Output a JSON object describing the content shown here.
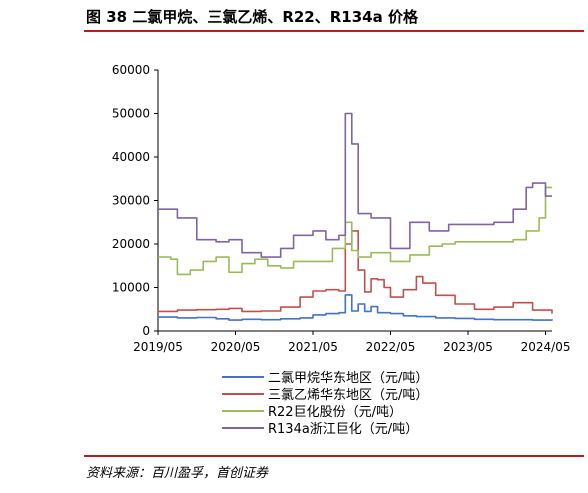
{
  "figure": {
    "title": "图 38 二氯甲烷、三氯乙烯、R22、R134a 价格",
    "source": "资料来源：百川盈孚，首创证券"
  },
  "chart_data": {
    "type": "line",
    "title": "",
    "xlabel": "",
    "ylabel": "",
    "ylim": [
      0,
      60000
    ],
    "yticks": [
      0,
      10000,
      20000,
      30000,
      40000,
      50000,
      60000
    ],
    "ytick_labels": [
      "0",
      "10000",
      "20000",
      "30000",
      "40000",
      "50000",
      "60000"
    ],
    "xlim": [
      "2019-05",
      "2024-06"
    ],
    "xticks": [
      "2019-05",
      "2020-05",
      "2021-05",
      "2022-05",
      "2023-05",
      "2024-05"
    ],
    "xtick_labels": [
      "2019/05",
      "2020/05",
      "2021/05",
      "2022/05",
      "2023/05",
      "2024/05"
    ],
    "grid": false,
    "legend_position": "bottom-center",
    "series": [
      {
        "name": "二氯甲烷华东地区（元/吨）",
        "color": "#4472c4",
        "points": [
          [
            "2019-05",
            3200
          ],
          [
            "2019-08",
            3000
          ],
          [
            "2019-11",
            3100
          ],
          [
            "2020-02",
            2800
          ],
          [
            "2020-04",
            2500
          ],
          [
            "2020-06",
            2700
          ],
          [
            "2020-09",
            2600
          ],
          [
            "2020-12",
            2800
          ],
          [
            "2021-03",
            3000
          ],
          [
            "2021-05",
            3700
          ],
          [
            "2021-07",
            4000
          ],
          [
            "2021-09",
            4200
          ],
          [
            "2021-10",
            8300
          ],
          [
            "2021-11",
            4600
          ],
          [
            "2021-12",
            6200
          ],
          [
            "2022-01",
            4500
          ],
          [
            "2022-02",
            5600
          ],
          [
            "2022-03",
            4200
          ],
          [
            "2022-05",
            4000
          ],
          [
            "2022-07",
            3500
          ],
          [
            "2022-09",
            3300
          ],
          [
            "2022-12",
            3000
          ],
          [
            "2023-03",
            2900
          ],
          [
            "2023-06",
            2700
          ],
          [
            "2023-09",
            2600
          ],
          [
            "2023-12",
            2600
          ],
          [
            "2024-03",
            2500
          ],
          [
            "2024-06",
            2700
          ]
        ]
      },
      {
        "name": "三氯乙烯华东地区（元/吨）",
        "color": "#c0504d",
        "points": [
          [
            "2019-05",
            4500
          ],
          [
            "2019-08",
            4800
          ],
          [
            "2019-11",
            4900
          ],
          [
            "2020-02",
            5000
          ],
          [
            "2020-04",
            5200
          ],
          [
            "2020-06",
            4500
          ],
          [
            "2020-09",
            4600
          ],
          [
            "2020-12",
            5500
          ],
          [
            "2021-03",
            7800
          ],
          [
            "2021-05",
            9200
          ],
          [
            "2021-07",
            9500
          ],
          [
            "2021-09",
            9200
          ],
          [
            "2021-10",
            20000
          ],
          [
            "2021-11",
            23000
          ],
          [
            "2021-12",
            14000
          ],
          [
            "2022-01",
            9000
          ],
          [
            "2022-02",
            12000
          ],
          [
            "2022-03",
            11800
          ],
          [
            "2022-04",
            10000
          ],
          [
            "2022-05",
            7800
          ],
          [
            "2022-07",
            9500
          ],
          [
            "2022-09",
            12500
          ],
          [
            "2022-10",
            11000
          ],
          [
            "2022-12",
            8200
          ],
          [
            "2023-03",
            6200
          ],
          [
            "2023-06",
            5000
          ],
          [
            "2023-09",
            5500
          ],
          [
            "2023-12",
            6500
          ],
          [
            "2024-03",
            4800
          ],
          [
            "2024-06",
            4000
          ]
        ]
      },
      {
        "name": "R22巨化股份（元/吨）",
        "color": "#9bbb59",
        "points": [
          [
            "2019-05",
            17000
          ],
          [
            "2019-07",
            16500
          ],
          [
            "2019-08",
            13000
          ],
          [
            "2019-10",
            14000
          ],
          [
            "2019-12",
            16000
          ],
          [
            "2020-02",
            17000
          ],
          [
            "2020-04",
            13500
          ],
          [
            "2020-06",
            15500
          ],
          [
            "2020-08",
            16500
          ],
          [
            "2020-10",
            15000
          ],
          [
            "2020-12",
            14500
          ],
          [
            "2021-02",
            16000
          ],
          [
            "2021-05",
            16000
          ],
          [
            "2021-08",
            19000
          ],
          [
            "2021-10",
            25000
          ],
          [
            "2021-11",
            18500
          ],
          [
            "2021-12",
            17000
          ],
          [
            "2022-02",
            18000
          ],
          [
            "2022-05",
            16000
          ],
          [
            "2022-08",
            17500
          ],
          [
            "2022-11",
            19500
          ],
          [
            "2023-01",
            20000
          ],
          [
            "2023-03",
            20500
          ],
          [
            "2023-06",
            20500
          ],
          [
            "2023-09",
            20500
          ],
          [
            "2023-12",
            21000
          ],
          [
            "2024-02",
            23000
          ],
          [
            "2024-04",
            26000
          ],
          [
            "2024-05",
            33000
          ],
          [
            "2024-06",
            33000
          ]
        ]
      },
      {
        "name": "R134a浙江巨化（元/吨）",
        "color": "#8064a2",
        "points": [
          [
            "2019-05",
            28000
          ],
          [
            "2019-08",
            26000
          ],
          [
            "2019-11",
            21000
          ],
          [
            "2020-02",
            20500
          ],
          [
            "2020-04",
            21000
          ],
          [
            "2020-06",
            18000
          ],
          [
            "2020-09",
            17000
          ],
          [
            "2020-12",
            19000
          ],
          [
            "2021-02",
            22000
          ],
          [
            "2021-05",
            23000
          ],
          [
            "2021-07",
            21000
          ],
          [
            "2021-09",
            22000
          ],
          [
            "2021-10",
            50000
          ],
          [
            "2021-11",
            43000
          ],
          [
            "2021-12",
            27000
          ],
          [
            "2022-02",
            26000
          ],
          [
            "2022-05",
            19000
          ],
          [
            "2022-08",
            25000
          ],
          [
            "2022-11",
            23000
          ],
          [
            "2023-02",
            24500
          ],
          [
            "2023-06",
            24500
          ],
          [
            "2023-09",
            25000
          ],
          [
            "2023-12",
            28000
          ],
          [
            "2024-02",
            33000
          ],
          [
            "2024-03",
            34000
          ],
          [
            "2024-05",
            31000
          ],
          [
            "2024-06",
            31000
          ]
        ]
      }
    ]
  }
}
